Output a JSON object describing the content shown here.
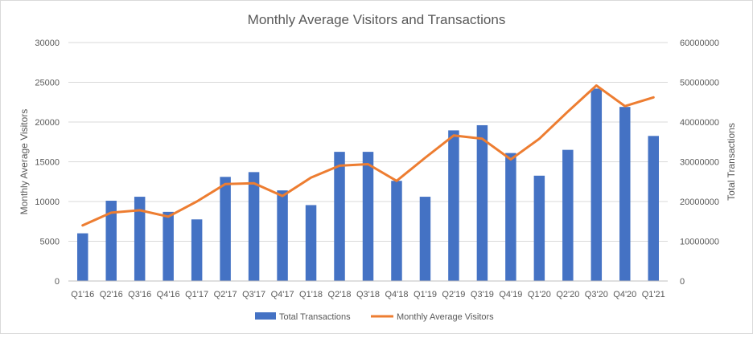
{
  "chart_data": {
    "type": "bar",
    "title": "Monthly Average Visitors and Transactions",
    "categories": [
      "Q1'16",
      "Q2'16",
      "Q3'16",
      "Q4'16",
      "Q1'17",
      "Q2'17",
      "Q3'17",
      "Q4'17",
      "Q1'18",
      "Q2'18",
      "Q3'18",
      "Q4'18",
      "Q1'19",
      "Q2'19",
      "Q3'19",
      "Q4'19",
      "Q1'20",
      "Q2'20",
      "Q3'20",
      "Q4'20",
      "Q1'21"
    ],
    "ylabel_left": "Monthly Average Visitors",
    "ylabel_right": "Total Transactions",
    "ylim_left": [
      0,
      30000
    ],
    "ylim_right": [
      0,
      60000000
    ],
    "yticks_left": [
      "0",
      "5000",
      "10000",
      "15000",
      "20000",
      "25000",
      "30000"
    ],
    "yticks_right": [
      "0",
      "10000000",
      "20000000",
      "30000000",
      "40000000",
      "50000000",
      "60000000"
    ],
    "grid": true,
    "legend_position": "bottom",
    "series": [
      {
        "name": "Total Transactions",
        "type": "bar",
        "axis": "right",
        "color": "#4472C4",
        "values": [
          12000000,
          20200000,
          21200000,
          17400000,
          15500000,
          26200000,
          27400000,
          22800000,
          19100000,
          32500000,
          32500000,
          25200000,
          21200000,
          37900000,
          39200000,
          32200000,
          26500000,
          33000000,
          48400000,
          43800000,
          36500000
        ]
      },
      {
        "name": "Monthly Average Visitors",
        "type": "line",
        "axis": "left",
        "color": "#ED7D31",
        "values": [
          7000,
          8600,
          8900,
          8100,
          10000,
          12200,
          12300,
          10700,
          13000,
          14500,
          14700,
          12600,
          15500,
          18300,
          17900,
          15300,
          17900,
          21300,
          24600,
          22000,
          23100
        ]
      }
    ]
  }
}
